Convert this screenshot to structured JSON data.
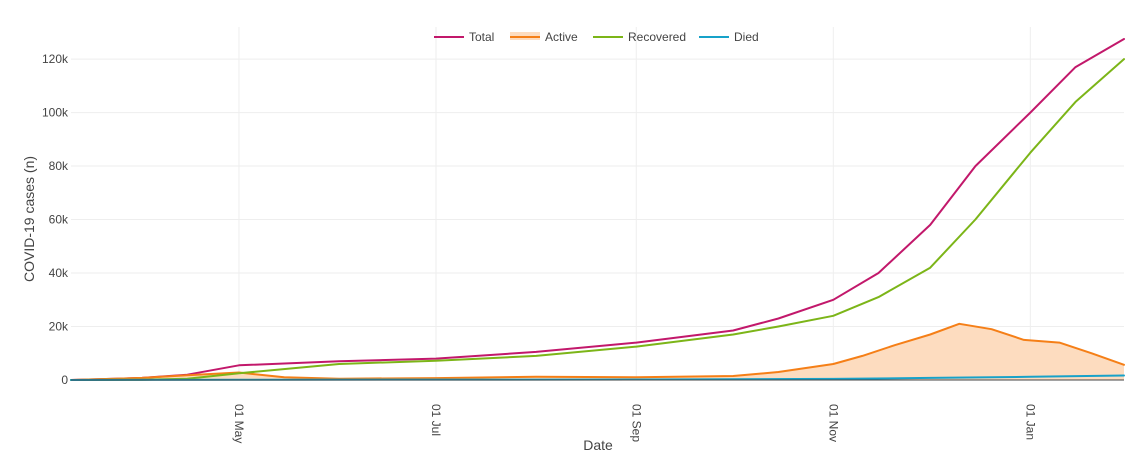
{
  "chart_data": {
    "type": "line",
    "xlabel": "Date",
    "ylabel": "COVID-19 cases (n)",
    "x_domain": [
      "2020-03-10",
      "2021-01-30"
    ],
    "ylim": [
      0,
      132000
    ],
    "y_ticks": [
      0,
      20000,
      40000,
      60000,
      80000,
      100000,
      120000
    ],
    "y_tick_labels": [
      "0",
      "20k",
      "40k",
      "60k",
      "80k",
      "100k",
      "120k"
    ],
    "x_ticks": [
      "2020-05-01",
      "2020-07-01",
      "2020-09-01",
      "2020-11-01",
      "2021-01-01"
    ],
    "x_tick_labels": [
      "01 May",
      "01 Jul",
      "01 Sep",
      "01 Nov",
      "01 Jan"
    ],
    "grid": true,
    "legend_position": "top-center",
    "series": [
      {
        "name": "Total",
        "color": "#c2186b",
        "fill": false,
        "points": [
          [
            "2020-03-10",
            0
          ],
          [
            "2020-04-01",
            800
          ],
          [
            "2020-04-15",
            2000
          ],
          [
            "2020-05-01",
            5500
          ],
          [
            "2020-06-01",
            7000
          ],
          [
            "2020-07-01",
            8000
          ],
          [
            "2020-08-01",
            10500
          ],
          [
            "2020-09-01",
            14000
          ],
          [
            "2020-10-01",
            18500
          ],
          [
            "2020-10-15",
            23000
          ],
          [
            "2020-11-01",
            30000
          ],
          [
            "2020-11-15",
            40000
          ],
          [
            "2020-12-01",
            58000
          ],
          [
            "2020-12-15",
            80000
          ],
          [
            "2021-01-01",
            100000
          ],
          [
            "2021-01-15",
            117000
          ],
          [
            "2021-01-30",
            127500
          ]
        ]
      },
      {
        "name": "Active",
        "color": "#f57f17",
        "fill": true,
        "fill_color": "#fddcbf",
        "points": [
          [
            "2020-03-10",
            0
          ],
          [
            "2020-04-01",
            800
          ],
          [
            "2020-04-15",
            1800
          ],
          [
            "2020-05-01",
            2800
          ],
          [
            "2020-05-15",
            1000
          ],
          [
            "2020-06-01",
            500
          ],
          [
            "2020-07-01",
            700
          ],
          [
            "2020-08-01",
            1200
          ],
          [
            "2020-09-01",
            1000
          ],
          [
            "2020-10-01",
            1500
          ],
          [
            "2020-10-15",
            3000
          ],
          [
            "2020-11-01",
            6000
          ],
          [
            "2020-11-10",
            9000
          ],
          [
            "2020-11-20",
            13000
          ],
          [
            "2020-12-01",
            17000
          ],
          [
            "2020-12-10",
            21000
          ],
          [
            "2020-12-20",
            19000
          ],
          [
            "2020-12-30",
            15000
          ],
          [
            "2021-01-10",
            14000
          ],
          [
            "2021-01-20",
            10000
          ],
          [
            "2021-01-30",
            5700
          ]
        ]
      },
      {
        "name": "Recovered",
        "color": "#7cb518",
        "fill": false,
        "points": [
          [
            "2020-03-10",
            0
          ],
          [
            "2020-04-01",
            100
          ],
          [
            "2020-04-15",
            500
          ],
          [
            "2020-05-01",
            2500
          ],
          [
            "2020-06-01",
            6000
          ],
          [
            "2020-07-01",
            7200
          ],
          [
            "2020-08-01",
            9000
          ],
          [
            "2020-09-01",
            12500
          ],
          [
            "2020-10-01",
            17000
          ],
          [
            "2020-10-15",
            20000
          ],
          [
            "2020-11-01",
            24000
          ],
          [
            "2020-11-15",
            31000
          ],
          [
            "2020-12-01",
            42000
          ],
          [
            "2020-12-15",
            60000
          ],
          [
            "2021-01-01",
            85000
          ],
          [
            "2021-01-15",
            104000
          ],
          [
            "2021-01-30",
            120000
          ]
        ]
      },
      {
        "name": "Died",
        "color": "#17a2c9",
        "fill": false,
        "points": [
          [
            "2020-03-10",
            0
          ],
          [
            "2020-05-01",
            100
          ],
          [
            "2020-07-01",
            150
          ],
          [
            "2020-09-01",
            200
          ],
          [
            "2020-11-01",
            400
          ],
          [
            "2020-12-01",
            800
          ],
          [
            "2021-01-01",
            1200
          ],
          [
            "2021-01-30",
            1700
          ]
        ]
      }
    ]
  }
}
